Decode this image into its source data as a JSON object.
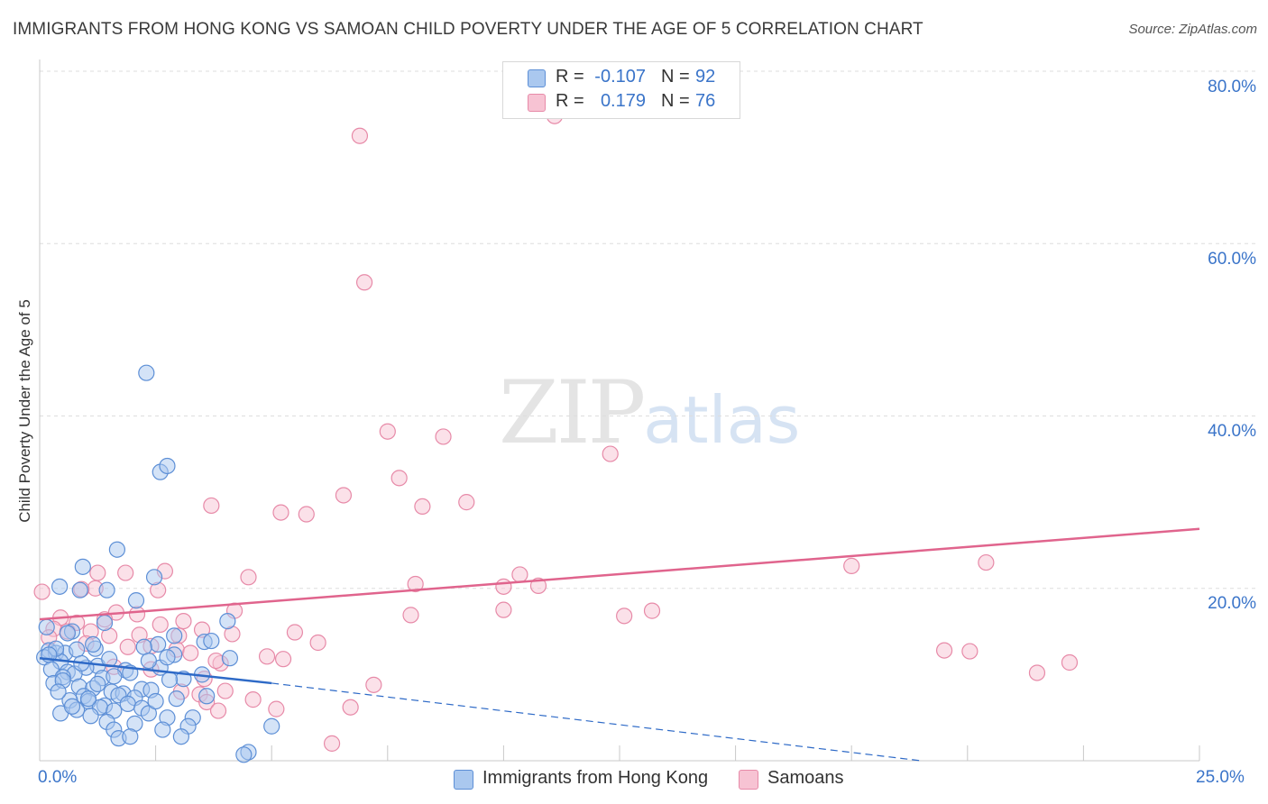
{
  "header": {
    "title": "IMMIGRANTS FROM HONG KONG VS SAMOAN CHILD POVERTY UNDER THE AGE OF 5 CORRELATION CHART",
    "source": "Source: ZipAtlas.com"
  },
  "watermark": {
    "zip": "ZIP",
    "atlas": "atlas"
  },
  "colors": {
    "series_a_fill": "#aac8ef",
    "series_a_stroke": "#5d8fd6",
    "series_a_line": "#2e6ac7",
    "series_b_fill": "#f7c3d3",
    "series_b_stroke": "#e78aa8",
    "series_b_line": "#e0648d",
    "tick_text": "#3a74c9",
    "grid": "#dddddd"
  },
  "stats": {
    "a": {
      "r_label": "R =",
      "r_value": "-0.107",
      "n_label": "N =",
      "n_value": "92"
    },
    "b": {
      "r_label": "R =",
      "r_value": "0.179",
      "n_label": "N =",
      "n_value": "76"
    }
  },
  "chart_data": {
    "type": "scatter",
    "title": "IMMIGRANTS FROM HONG KONG VS SAMOAN CHILD POVERTY UNDER THE AGE OF 5 CORRELATION CHART",
    "xlabel": "",
    "ylabel": "Child Poverty Under the Age of 5",
    "xlim": [
      0,
      25
    ],
    "ylim": [
      0,
      80
    ],
    "x_tick_labels": [
      "0.0%",
      "25.0%"
    ],
    "y_ticks": [
      20,
      40,
      60,
      80
    ],
    "y_tick_labels": [
      "20.0%",
      "40.0%",
      "60.0%",
      "80.0%"
    ],
    "grid": true,
    "legend": "bottom",
    "series": [
      {
        "name": "Immigrants from Hong Kong",
        "r": -0.107,
        "n": 92,
        "trend_solid": {
          "x": [
            0,
            5.0
          ],
          "y": [
            11.9,
            9.0
          ]
        },
        "trend_dashed": {
          "x": [
            5.0,
            19.0
          ],
          "y": [
            9.0,
            0.0
          ]
        },
        "points": [
          [
            2.3,
            45.0
          ],
          [
            2.6,
            33.5
          ],
          [
            2.75,
            34.2
          ],
          [
            1.67,
            24.5
          ],
          [
            0.93,
            22.5
          ],
          [
            2.47,
            21.3
          ],
          [
            0.43,
            20.2
          ],
          [
            0.87,
            19.8
          ],
          [
            1.45,
            19.8
          ],
          [
            2.08,
            18.6
          ],
          [
            4.05,
            16.2
          ],
          [
            1.4,
            16.0
          ],
          [
            0.15,
            15.5
          ],
          [
            0.7,
            15.0
          ],
          [
            2.9,
            14.5
          ],
          [
            3.55,
            13.8
          ],
          [
            2.55,
            13.5
          ],
          [
            2.25,
            13.2
          ],
          [
            0.2,
            12.8
          ],
          [
            0.35,
            12.5
          ],
          [
            0.55,
            12.5
          ],
          [
            0.8,
            12.9
          ],
          [
            1.2,
            13.0
          ],
          [
            0.1,
            12.0
          ],
          [
            0.45,
            11.5
          ],
          [
            4.1,
            11.9
          ],
          [
            1.25,
            11.0
          ],
          [
            1.0,
            10.8
          ],
          [
            0.25,
            10.6
          ],
          [
            0.6,
            10.3
          ],
          [
            0.75,
            10.1
          ],
          [
            1.85,
            10.5
          ],
          [
            2.6,
            10.8
          ],
          [
            0.5,
            9.7
          ],
          [
            1.35,
            9.6
          ],
          [
            1.6,
            9.8
          ],
          [
            3.1,
            9.5
          ],
          [
            3.5,
            10.0
          ],
          [
            0.3,
            9.0
          ],
          [
            0.85,
            8.6
          ],
          [
            2.2,
            8.3
          ],
          [
            1.55,
            8.0
          ],
          [
            1.15,
            8.4
          ],
          [
            1.8,
            7.8
          ],
          [
            2.4,
            8.2
          ],
          [
            0.95,
            7.5
          ],
          [
            1.7,
            7.6
          ],
          [
            2.05,
            7.3
          ],
          [
            2.95,
            7.2
          ],
          [
            0.65,
            7.0
          ],
          [
            1.05,
            6.9
          ],
          [
            1.4,
            6.4
          ],
          [
            1.9,
            6.6
          ],
          [
            2.2,
            6.1
          ],
          [
            1.3,
            6.2
          ],
          [
            0.8,
            5.9
          ],
          [
            1.6,
            5.8
          ],
          [
            2.35,
            5.5
          ],
          [
            0.45,
            5.5
          ],
          [
            1.1,
            5.2
          ],
          [
            2.75,
            5.0
          ],
          [
            3.3,
            5.0
          ],
          [
            1.45,
            4.5
          ],
          [
            2.05,
            4.3
          ],
          [
            3.2,
            4.0
          ],
          [
            1.6,
            3.6
          ],
          [
            2.65,
            3.6
          ],
          [
            3.05,
            2.8
          ],
          [
            1.7,
            2.6
          ],
          [
            5.0,
            4.0
          ],
          [
            4.5,
            1.0
          ],
          [
            4.4,
            0.7
          ],
          [
            1.95,
            2.8
          ],
          [
            2.9,
            12.3
          ],
          [
            3.7,
            13.9
          ],
          [
            0.6,
            14.8
          ],
          [
            0.35,
            13.0
          ],
          [
            1.15,
            13.5
          ],
          [
            2.75,
            12.0
          ],
          [
            0.2,
            12.3
          ],
          [
            0.9,
            11.3
          ],
          [
            1.5,
            11.8
          ],
          [
            2.35,
            11.6
          ],
          [
            1.95,
            10.2
          ],
          [
            0.5,
            9.3
          ],
          [
            1.25,
            8.9
          ],
          [
            2.5,
            6.9
          ],
          [
            1.05,
            7.2
          ],
          [
            0.7,
            6.3
          ],
          [
            3.6,
            7.5
          ],
          [
            2.8,
            9.4
          ],
          [
            0.4,
            8.0
          ]
        ]
      },
      {
        "name": "Samoans",
        "r": 0.179,
        "n": 76,
        "trend_solid": {
          "x": [
            0,
            25
          ],
          "y": [
            16.4,
            26.9
          ]
        },
        "points": [
          [
            11.1,
            74.8
          ],
          [
            6.9,
            72.5
          ],
          [
            7.0,
            55.5
          ],
          [
            7.5,
            38.2
          ],
          [
            8.7,
            37.6
          ],
          [
            12.3,
            35.6
          ],
          [
            7.75,
            32.8
          ],
          [
            6.55,
            30.8
          ],
          [
            8.25,
            29.5
          ],
          [
            9.2,
            30.0
          ],
          [
            3.7,
            29.6
          ],
          [
            5.2,
            28.8
          ],
          [
            5.75,
            28.6
          ],
          [
            2.7,
            22.0
          ],
          [
            1.85,
            21.8
          ],
          [
            4.5,
            21.3
          ],
          [
            10.35,
            21.6
          ],
          [
            8.1,
            20.5
          ],
          [
            10.75,
            20.3
          ],
          [
            10.0,
            20.2
          ],
          [
            0.05,
            19.6
          ],
          [
            1.2,
            20.0
          ],
          [
            2.55,
            19.8
          ],
          [
            4.2,
            17.4
          ],
          [
            8.0,
            16.9
          ],
          [
            10.0,
            17.5
          ],
          [
            12.6,
            16.8
          ],
          [
            13.2,
            17.4
          ],
          [
            2.1,
            17.0
          ],
          [
            1.65,
            17.2
          ],
          [
            0.45,
            16.6
          ],
          [
            0.8,
            16.0
          ],
          [
            1.4,
            16.4
          ],
          [
            2.6,
            15.8
          ],
          [
            3.1,
            16.2
          ],
          [
            3.5,
            15.2
          ],
          [
            0.3,
            15.3
          ],
          [
            0.6,
            15.0
          ],
          [
            1.1,
            15.0
          ],
          [
            1.5,
            14.5
          ],
          [
            2.15,
            14.6
          ],
          [
            3.0,
            14.5
          ],
          [
            4.15,
            14.7
          ],
          [
            5.5,
            14.9
          ],
          [
            6.0,
            13.7
          ],
          [
            0.2,
            14.3
          ],
          [
            1.0,
            13.6
          ],
          [
            1.9,
            13.2
          ],
          [
            2.4,
            13.3
          ],
          [
            2.95,
            12.9
          ],
          [
            3.25,
            12.5
          ],
          [
            4.9,
            12.1
          ],
          [
            5.25,
            11.8
          ],
          [
            3.9,
            11.3
          ],
          [
            2.4,
            10.6
          ],
          [
            1.6,
            10.9
          ],
          [
            3.55,
            9.5
          ],
          [
            7.2,
            8.8
          ],
          [
            4.0,
            8.1
          ],
          [
            3.05,
            8.0
          ],
          [
            3.45,
            7.7
          ],
          [
            4.6,
            7.1
          ],
          [
            3.6,
            6.8
          ],
          [
            3.85,
            5.8
          ],
          [
            6.7,
            6.2
          ],
          [
            5.1,
            6.0
          ],
          [
            6.3,
            2.0
          ],
          [
            19.5,
            12.8
          ],
          [
            20.05,
            12.7
          ],
          [
            21.5,
            10.2
          ],
          [
            22.2,
            11.4
          ],
          [
            17.5,
            22.6
          ],
          [
            20.4,
            23.0
          ],
          [
            1.25,
            21.8
          ],
          [
            3.8,
            11.6
          ],
          [
            0.9,
            19.9
          ]
        ]
      }
    ]
  },
  "legend_bottom": {
    "a_label": "Immigrants from Hong Kong",
    "b_label": "Samoans"
  }
}
